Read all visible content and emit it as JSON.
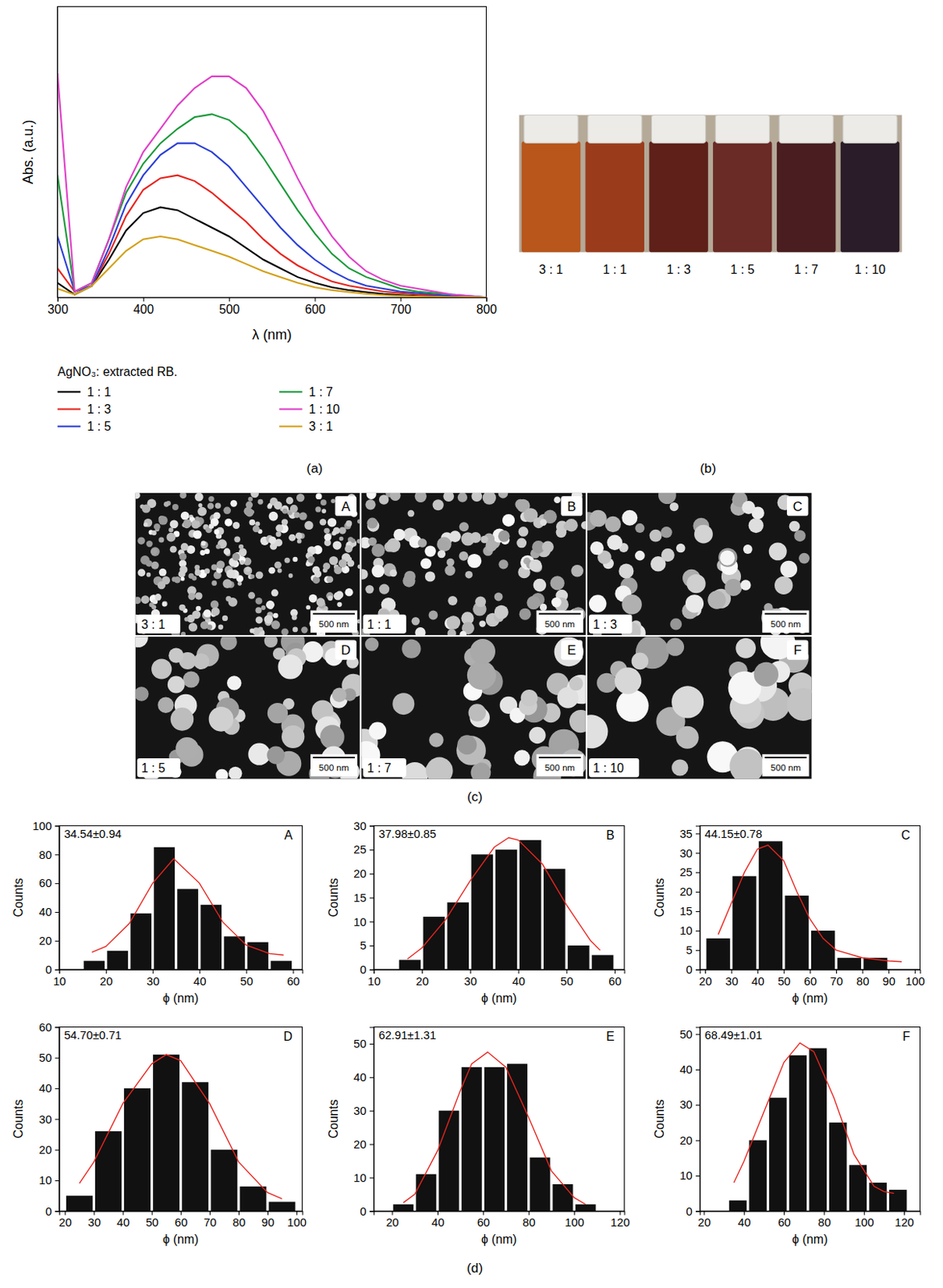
{
  "chart_data": [
    {
      "type": "line",
      "panel_label": "(a)",
      "x_label": "λ (nm)",
      "y_label": "Abs. (a.u.)",
      "legend_title": "AgNO₃: extracted RB.",
      "legend": "below",
      "tick_labels": "x",
      "x": [
        300,
        320,
        340,
        360,
        380,
        400,
        420,
        440,
        460,
        480,
        500,
        520,
        540,
        560,
        580,
        600,
        620,
        640,
        660,
        680,
        700,
        720,
        740,
        760,
        780,
        800
      ],
      "xlim": [
        300,
        800
      ],
      "xticks": [
        300,
        400,
        500,
        600,
        700,
        800
      ],
      "ylim": [
        0,
        1
      ],
      "series": [
        {
          "name": "1 : 1",
          "color": "#000000",
          "values": [
            0.05,
            0.01,
            0.04,
            0.13,
            0.23,
            0.29,
            0.31,
            0.3,
            0.27,
            0.24,
            0.21,
            0.17,
            0.13,
            0.1,
            0.07,
            0.05,
            0.035,
            0.025,
            0.018,
            0.012,
            0.008,
            0.005,
            0.003,
            0.002,
            0.001,
            0
          ]
        },
        {
          "name": "1 : 3",
          "color": "#e8251f",
          "values": [
            0.1,
            0.02,
            0.04,
            0.15,
            0.28,
            0.37,
            0.41,
            0.42,
            0.4,
            0.36,
            0.31,
            0.26,
            0.2,
            0.15,
            0.11,
            0.08,
            0.055,
            0.04,
            0.03,
            0.02,
            0.015,
            0.01,
            0.007,
            0.004,
            0.002,
            0
          ]
        },
        {
          "name": "1 : 5",
          "color": "#2b3fd6",
          "values": [
            0.21,
            0.02,
            0.04,
            0.17,
            0.32,
            0.42,
            0.49,
            0.53,
            0.53,
            0.5,
            0.45,
            0.38,
            0.31,
            0.24,
            0.18,
            0.13,
            0.09,
            0.06,
            0.04,
            0.03,
            0.02,
            0.015,
            0.01,
            0.005,
            0.003,
            0
          ]
        },
        {
          "name": "1 : 7",
          "color": "#1a9a3a",
          "values": [
            0.42,
            0.02,
            0.05,
            0.2,
            0.36,
            0.46,
            0.53,
            0.58,
            0.62,
            0.63,
            0.61,
            0.56,
            0.48,
            0.39,
            0.3,
            0.22,
            0.15,
            0.1,
            0.07,
            0.05,
            0.03,
            0.02,
            0.015,
            0.01,
            0.005,
            0
          ]
        },
        {
          "name": "1 : 10",
          "color": "#e040c8",
          "values": [
            0.77,
            0.02,
            0.05,
            0.2,
            0.38,
            0.5,
            0.58,
            0.66,
            0.72,
            0.76,
            0.76,
            0.72,
            0.64,
            0.53,
            0.41,
            0.3,
            0.21,
            0.14,
            0.09,
            0.06,
            0.04,
            0.03,
            0.02,
            0.01,
            0.005,
            0
          ]
        },
        {
          "name": "3 : 1",
          "color": "#d4a017",
          "values": [
            0.03,
            0.01,
            0.04,
            0.1,
            0.16,
            0.2,
            0.21,
            0.2,
            0.18,
            0.16,
            0.14,
            0.115,
            0.09,
            0.07,
            0.05,
            0.035,
            0.025,
            0.018,
            0.012,
            0.008,
            0.005,
            0.003,
            0.002,
            0.001,
            0.001,
            0
          ]
        }
      ]
    },
    {
      "type": "photo",
      "panel_label": "(b)",
      "categories": [
        "3 : 1",
        "1 : 1",
        "1 : 3",
        "1 : 5",
        "1 : 7",
        "1 : 10"
      ],
      "colors": [
        "#b8561c",
        "#9a3c1c",
        "#5e2018",
        "#6a2a26",
        "#4a1e20",
        "#2a1c28"
      ]
    },
    {
      "type": "micrograph",
      "panel_label": "(c)",
      "letters": [
        "A",
        "B",
        "C",
        "D",
        "E",
        "F"
      ],
      "categories": [
        "3 : 1",
        "1 : 1",
        "1 : 3",
        "1 : 5",
        "1 : 7",
        "1 : 10"
      ],
      "scale_bar": "500 nm"
    },
    {
      "type": "histogram",
      "panel_label": "(d)",
      "letter": "A",
      "annotation": "34.54±0.94",
      "x_label": "ϕ (nm)",
      "y_label": "Counts",
      "color": "#111111",
      "bins": [
        15,
        20,
        25,
        30,
        35,
        40,
        45,
        50,
        55,
        60
      ],
      "counts": [
        6,
        13,
        39,
        85,
        56,
        45,
        23,
        19,
        6
      ],
      "xlim": [
        10,
        62
      ],
      "xticks": [
        10,
        20,
        30,
        40,
        50,
        60
      ],
      "ylim": [
        0,
        100
      ],
      "yticks": [
        0,
        20,
        40,
        60,
        80,
        100
      ],
      "fit": {
        "color": "#e8251f",
        "x": [
          17,
          20,
          25,
          30,
          34.5,
          40,
          45,
          50,
          55,
          58
        ],
        "values": [
          12,
          16,
          32,
          60,
          77,
          60,
          33,
          17,
          11,
          10
        ]
      }
    },
    {
      "type": "histogram",
      "letter": "B",
      "annotation": "37.98±0.85",
      "x_label": "ϕ (nm)",
      "y_label": "Counts",
      "color": "#111111",
      "bins": [
        15,
        20,
        25,
        30,
        35,
        40,
        45,
        50,
        55,
        60
      ],
      "counts": [
        2,
        11,
        14,
        24,
        25,
        27,
        21,
        5,
        3
      ],
      "xlim": [
        10,
        62
      ],
      "xticks": [
        10,
        20,
        30,
        40,
        50,
        60
      ],
      "ylim": [
        0,
        30
      ],
      "yticks": [
        0,
        5,
        10,
        15,
        20,
        25,
        30
      ],
      "fit": {
        "color": "#e8251f",
        "x": [
          17,
          20,
          25,
          30,
          35,
          38,
          40,
          45,
          50,
          55,
          57
        ],
        "values": [
          2.2,
          4.5,
          10.5,
          18.5,
          25.5,
          27.5,
          27,
          22,
          13.5,
          6,
          4
        ]
      }
    },
    {
      "type": "histogram",
      "letter": "C",
      "annotation": "44.15±0.78",
      "x_label": "ϕ (nm)",
      "y_label": "Counts",
      "color": "#111111",
      "bins": [
        20,
        30,
        40,
        50,
        60,
        70,
        80,
        90
      ],
      "counts": [
        8,
        24,
        33,
        19,
        10,
        3,
        3
      ],
      "xlim": [
        18,
        102
      ],
      "xticks": [
        20,
        30,
        40,
        50,
        60,
        70,
        80,
        90,
        100
      ],
      "ylim": [
        0,
        37
      ],
      "yticks": [
        0,
        5,
        10,
        15,
        20,
        25,
        30,
        35
      ],
      "fit": {
        "color": "#e8251f",
        "x": [
          25,
          30,
          35,
          40,
          44,
          50,
          55,
          60,
          65,
          70,
          80,
          90,
          95
        ],
        "values": [
          9,
          17,
          25,
          31,
          32,
          28,
          20,
          13,
          8,
          5,
          3,
          2.2,
          2
        ]
      }
    },
    {
      "type": "histogram",
      "letter": "D",
      "annotation": "54.70±0.71",
      "x_label": "ϕ (nm)",
      "y_label": "Counts",
      "color": "#111111",
      "bins": [
        20,
        30,
        40,
        50,
        60,
        70,
        80,
        90,
        100
      ],
      "counts": [
        5,
        26,
        40,
        51,
        42,
        20,
        8,
        3
      ],
      "xlim": [
        18,
        102
      ],
      "xticks": [
        20,
        30,
        40,
        50,
        60,
        70,
        80,
        90,
        100
      ],
      "ylim": [
        0,
        60
      ],
      "yticks": [
        0,
        10,
        20,
        30,
        40,
        50,
        60
      ],
      "fit": {
        "color": "#e8251f",
        "x": [
          25,
          30,
          40,
          50,
          55,
          60,
          70,
          80,
          90,
          95
        ],
        "values": [
          9,
          16,
          35,
          48,
          51,
          49,
          35,
          16,
          6,
          4
        ]
      }
    },
    {
      "type": "histogram",
      "letter": "E",
      "annotation": "62.91±1.31",
      "x_label": "ϕ (nm)",
      "y_label": "Counts",
      "color": "#111111",
      "bins": [
        20,
        30,
        40,
        50,
        60,
        70,
        80,
        90,
        100,
        110
      ],
      "counts": [
        2,
        11,
        30,
        43,
        43,
        44,
        16,
        8,
        2
      ],
      "xlim": [
        12,
        122
      ],
      "xticks": [
        20,
        40,
        60,
        80,
        100,
        120
      ],
      "ylim": [
        0,
        55
      ],
      "yticks": [
        0,
        10,
        20,
        30,
        40,
        50
      ],
      "fit": {
        "color": "#e8251f",
        "x": [
          25,
          30,
          40,
          50,
          55,
          62,
          70,
          80,
          90,
          100,
          105
        ],
        "values": [
          2.5,
          5,
          18,
          36,
          44,
          47.5,
          43,
          28,
          12,
          4,
          2
        ]
      }
    },
    {
      "type": "histogram",
      "letter": "F",
      "annotation": "68.49±1.01",
      "x_label": "ϕ (nm)",
      "y_label": "Counts",
      "color": "#111111",
      "bins": [
        32,
        42,
        52,
        62,
        72,
        82,
        92,
        102,
        112,
        122
      ],
      "counts": [
        3,
        20,
        32,
        44,
        46,
        25,
        13,
        8,
        6
      ],
      "xlim": [
        18,
        128
      ],
      "xticks": [
        20,
        40,
        60,
        80,
        100,
        120
      ],
      "ylim": [
        0,
        52
      ],
      "yticks": [
        0,
        10,
        20,
        30,
        40,
        50
      ],
      "fit": {
        "color": "#e8251f",
        "x": [
          35,
          40,
          50,
          60,
          68,
          75,
          85,
          95,
          105,
          110,
          115
        ],
        "values": [
          8,
          14,
          28,
          42,
          47.5,
          45,
          32,
          16,
          7,
          5.5,
          5
        ]
      }
    }
  ]
}
